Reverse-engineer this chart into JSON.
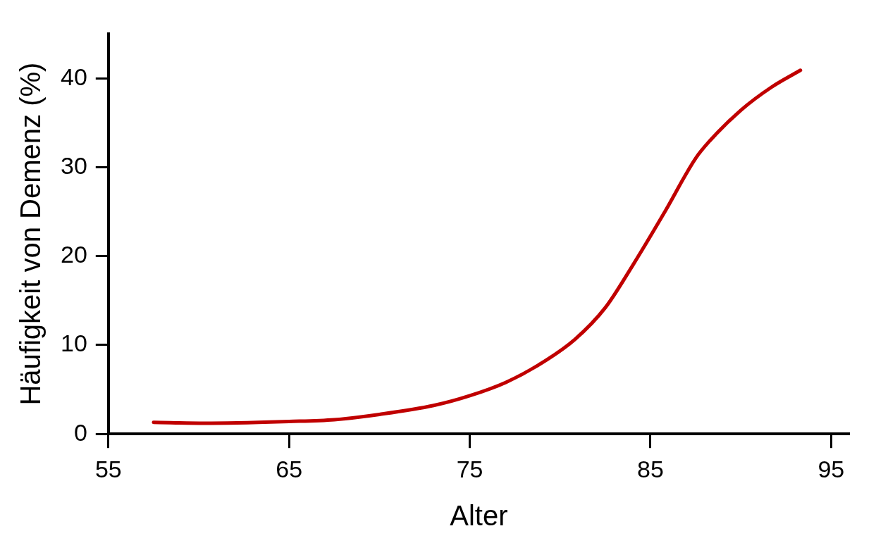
{
  "chart_data": {
    "type": "line",
    "xlabel": "Alter",
    "ylabel": "Häufigkeit von Demenz (%)",
    "x": [
      57.5,
      60.3,
      65,
      67.5,
      70,
      73,
      75,
      77,
      79,
      80.8,
      82.5,
      84,
      85.8,
      87.5,
      88.3,
      90,
      91.7,
      93.3
    ],
    "series": [
      {
        "color": "#c00000",
        "values": [
          1.3,
          1.2,
          1.4,
          1.6,
          2.2,
          3.2,
          4.3,
          5.8,
          8.0,
          10.6,
          14.2,
          18.9,
          25,
          31,
          33,
          36.4,
          39,
          40.9
        ]
      }
    ],
    "xlim": [
      55,
      96
    ],
    "xticks": [
      55,
      65,
      75,
      85,
      95
    ],
    "ylim": [
      0,
      45
    ],
    "yticks": [
      0,
      10,
      20,
      30,
      40
    ],
    "grid": false,
    "legend": false,
    "marker": "none",
    "line_style": "solid"
  }
}
